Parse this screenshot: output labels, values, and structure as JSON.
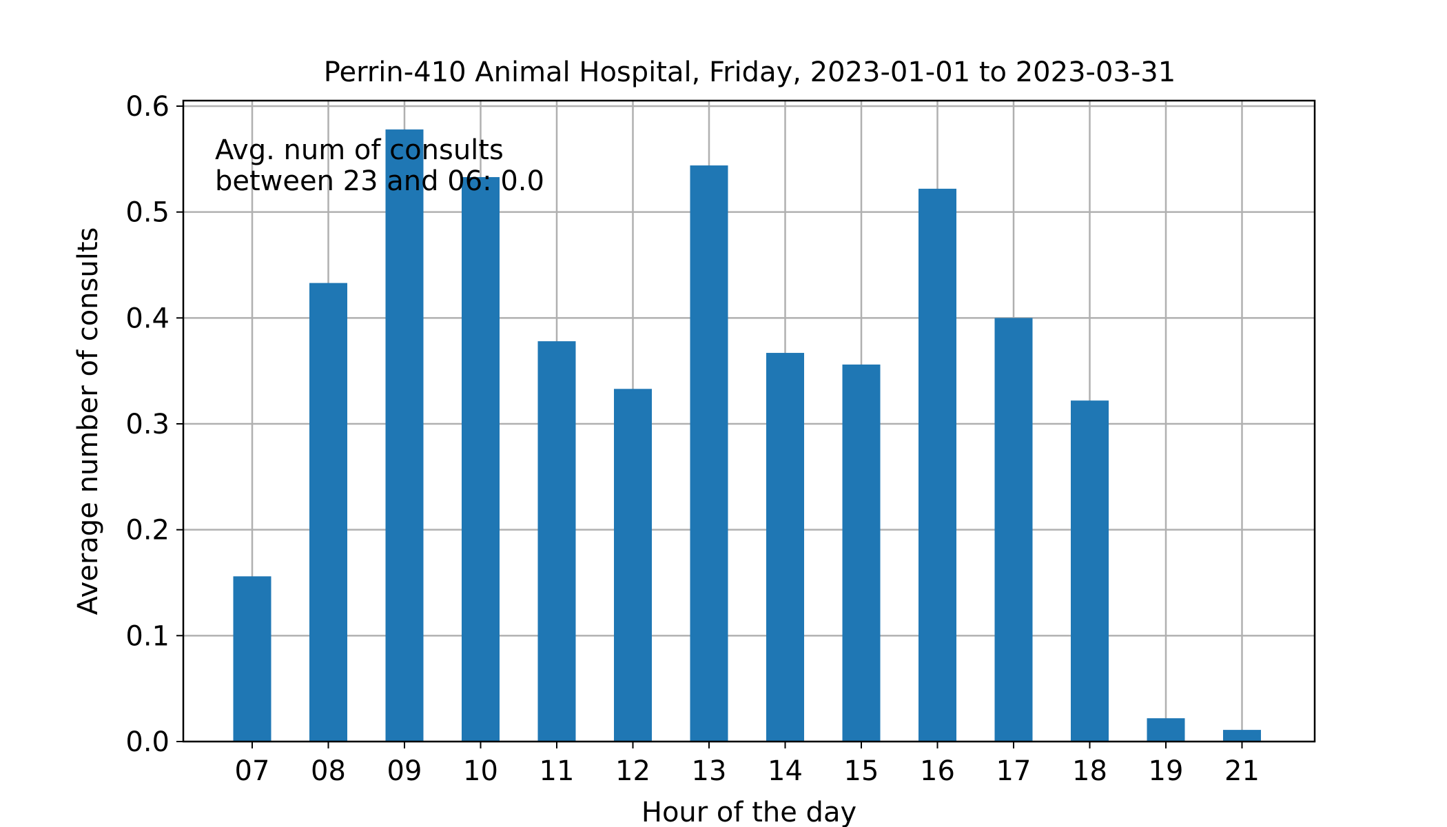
{
  "chart_data": {
    "type": "bar",
    "title": "Perrin-410 Animal Hospital, Friday, 2023-01-01 to 2023-03-31",
    "xlabel": "Hour of the day",
    "ylabel": "Average number of consults",
    "categories": [
      "07",
      "08",
      "09",
      "10",
      "11",
      "12",
      "13",
      "14",
      "15",
      "16",
      "17",
      "18",
      "19",
      "21"
    ],
    "values": [
      0.156,
      0.433,
      0.578,
      0.533,
      0.378,
      0.333,
      0.544,
      0.367,
      0.356,
      0.522,
      0.4,
      0.322,
      0.022,
      0.011
    ],
    "ylim": [
      0,
      0.6
    ],
    "yticks": [
      "0.0",
      "0.1",
      "0.2",
      "0.3",
      "0.4",
      "0.5",
      "0.6"
    ],
    "grid": true,
    "bar_color": "#1f77b4",
    "annotation": [
      "Avg. num of consults",
      "between 23 and 06: 0.0"
    ]
  }
}
